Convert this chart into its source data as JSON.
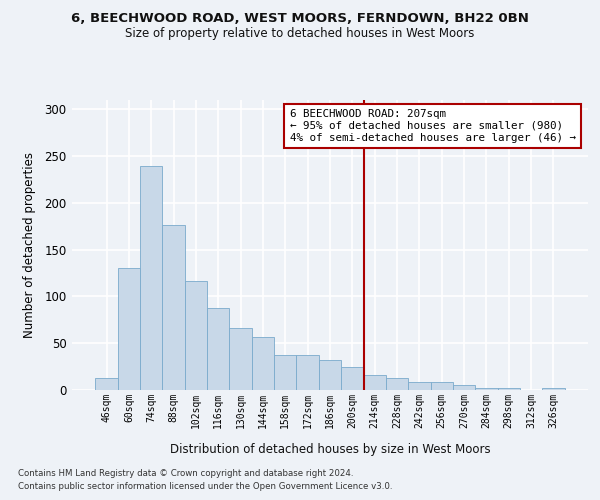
{
  "title1": "6, BEECHWOOD ROAD, WEST MOORS, FERNDOWN, BH22 0BN",
  "title2": "Size of property relative to detached houses in West Moors",
  "xlabel": "Distribution of detached houses by size in West Moors",
  "ylabel": "Number of detached properties",
  "footer1": "Contains HM Land Registry data © Crown copyright and database right 2024.",
  "footer2": "Contains public sector information licensed under the Open Government Licence v3.0.",
  "categories": [
    "46sqm",
    "60sqm",
    "74sqm",
    "88sqm",
    "102sqm",
    "116sqm",
    "130sqm",
    "144sqm",
    "158sqm",
    "172sqm",
    "186sqm",
    "200sqm",
    "214sqm",
    "228sqm",
    "242sqm",
    "256sqm",
    "270sqm",
    "284sqm",
    "298sqm",
    "312sqm",
    "326sqm"
  ],
  "values": [
    13,
    130,
    239,
    176,
    116,
    88,
    66,
    57,
    37,
    37,
    32,
    25,
    16,
    13,
    9,
    9,
    5,
    2,
    2,
    0,
    2
  ],
  "bar_color": "#c8d8e8",
  "bar_edge_color": "#7aaacc",
  "vline_color": "#aa0000",
  "annotation_text": "6 BEECHWOOD ROAD: 207sqm\n← 95% of detached houses are smaller (980)\n4% of semi-detached houses are larger (46) →",
  "annotation_box_color": "#ffffff",
  "annotation_box_edge": "#aa0000",
  "ylim": [
    0,
    310
  ],
  "yticks": [
    0,
    50,
    100,
    150,
    200,
    250,
    300
  ],
  "background_color": "#eef2f7",
  "grid_color": "#ffffff"
}
